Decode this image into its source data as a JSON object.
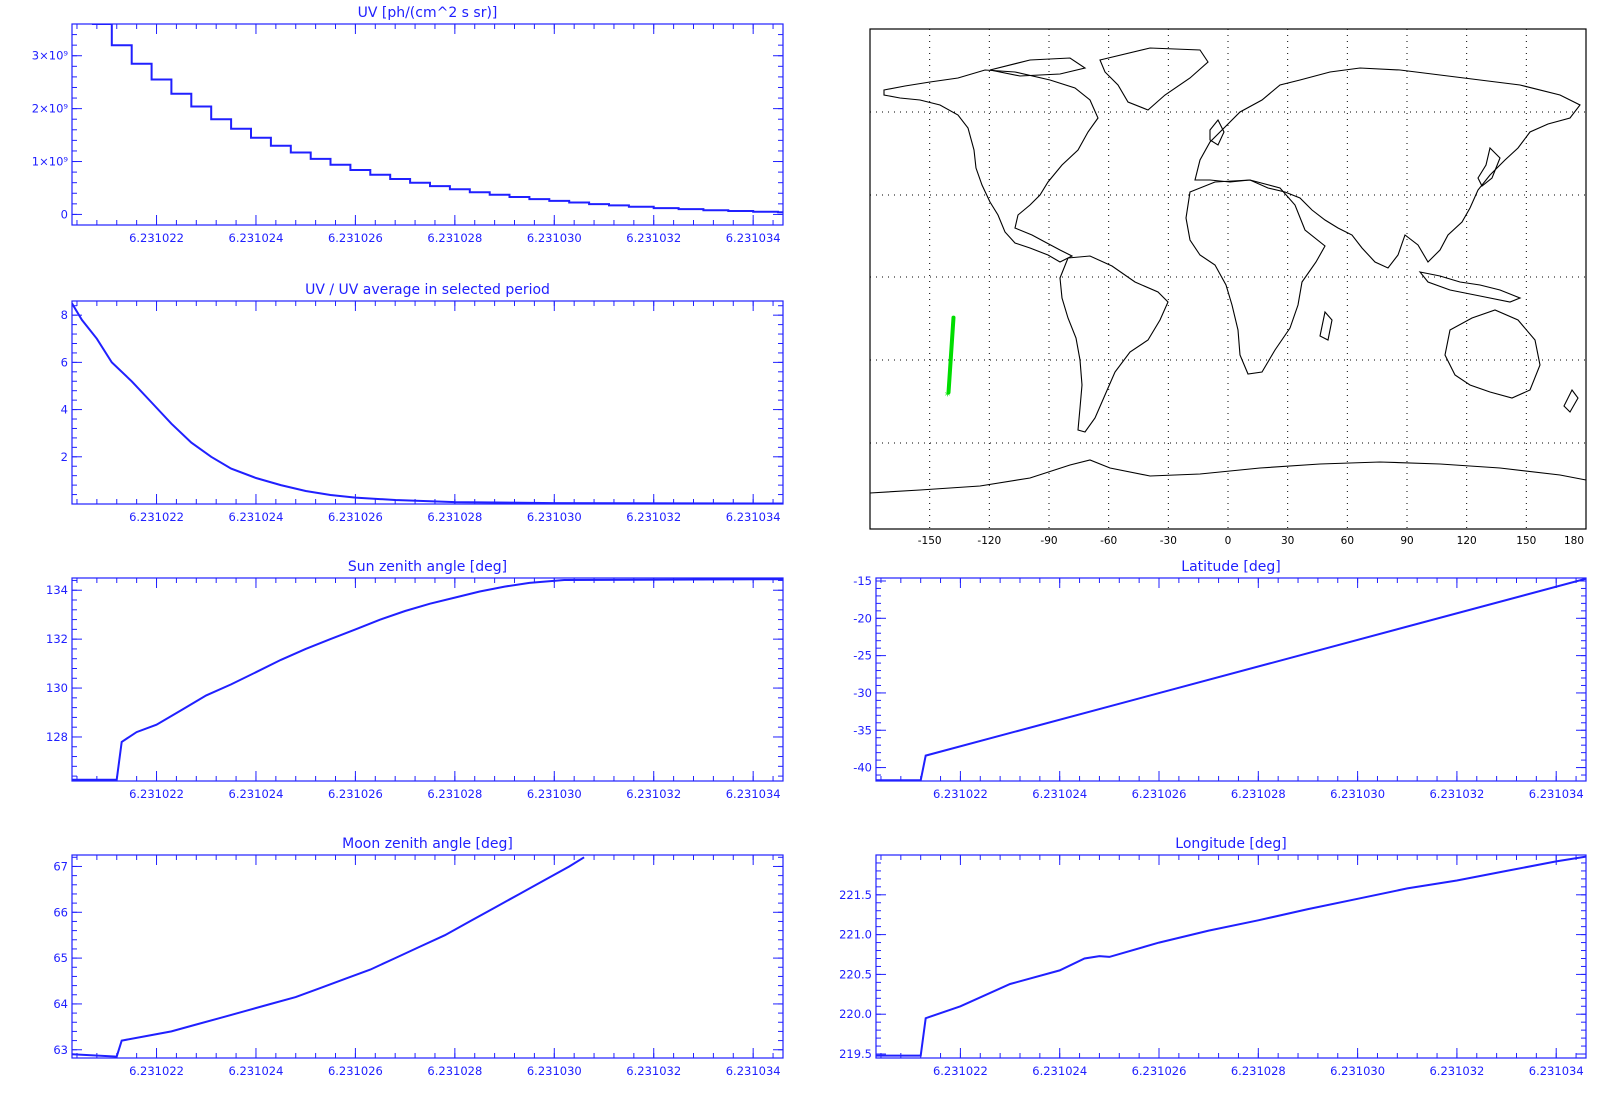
{
  "chart_data": [
    {
      "id": "uv",
      "type": "line",
      "title": "UV [ph/(cm^2 s sr)]",
      "step": true,
      "xlim": [
        6.2310203,
        6.2310346
      ],
      "ylim": [
        -200000000,
        3600000000
      ],
      "xticks": [
        6.231022,
        6.231024,
        6.231026,
        6.231028,
        6.23103,
        6.231032,
        6.231034
      ],
      "xtick_labels": [
        "6.231022",
        "6.231024",
        "6.231026",
        "6.231028",
        "6.231030",
        "6.231032",
        "6.231034"
      ],
      "yticks": [
        0,
        1000000000,
        2000000000,
        3000000000
      ],
      "ytick_labels": [
        "0",
        "1×10⁹",
        "2×10⁹",
        "3×10⁹"
      ],
      "series": [
        {
          "values": [
            [
              6.2310207,
              3600000000
            ],
            [
              6.2310211,
              3200000000
            ],
            [
              6.2310215,
              2850000000
            ],
            [
              6.2310219,
              2550000000
            ],
            [
              6.2310223,
              2280000000
            ],
            [
              6.2310227,
              2040000000
            ],
            [
              6.2310231,
              1800000000
            ],
            [
              6.2310235,
              1620000000
            ],
            [
              6.2310239,
              1450000000
            ],
            [
              6.2310243,
              1300000000
            ],
            [
              6.2310247,
              1170000000
            ],
            [
              6.2310251,
              1050000000
            ],
            [
              6.2310255,
              940000000
            ],
            [
              6.2310259,
              840000000
            ],
            [
              6.2310263,
              750000000
            ],
            [
              6.2310267,
              670000000
            ],
            [
              6.2310271,
              600000000
            ],
            [
              6.2310275,
              535000000
            ],
            [
              6.2310279,
              475000000
            ],
            [
              6.2310283,
              420000000
            ],
            [
              6.2310287,
              370000000
            ],
            [
              6.2310291,
              330000000
            ],
            [
              6.2310295,
              290000000
            ],
            [
              6.2310299,
              255000000
            ],
            [
              6.2310303,
              225000000
            ],
            [
              6.2310307,
              195000000
            ],
            [
              6.2310311,
              170000000
            ],
            [
              6.2310315,
              145000000
            ],
            [
              6.231032,
              120000000
            ],
            [
              6.2310325,
              100000000
            ],
            [
              6.231033,
              80000000
            ],
            [
              6.2310335,
              65000000
            ],
            [
              6.231034,
              50000000
            ],
            [
              6.2310345,
              40000000
            ]
          ]
        }
      ]
    },
    {
      "id": "uvratio",
      "type": "line",
      "title": "UV / UV average in selected period",
      "xlim": [
        6.2310203,
        6.2310346
      ],
      "ylim": [
        0,
        8.6
      ],
      "xticks": [
        6.231022,
        6.231024,
        6.231026,
        6.231028,
        6.23103,
        6.231032,
        6.231034
      ],
      "xtick_labels": [
        "6.231022",
        "6.231024",
        "6.231026",
        "6.231028",
        "6.231030",
        "6.231032",
        "6.231034"
      ],
      "yticks": [
        2,
        4,
        6,
        8
      ],
      "ytick_labels": [
        "2",
        "4",
        "6",
        "8"
      ],
      "series": [
        {
          "values": [
            [
              6.2310203,
              8.5
            ],
            [
              6.2310205,
              7.8
            ],
            [
              6.2310208,
              7.0
            ],
            [
              6.2310211,
              6.0
            ],
            [
              6.2310215,
              5.2
            ],
            [
              6.2310219,
              4.3
            ],
            [
              6.2310223,
              3.4
            ],
            [
              6.2310227,
              2.6
            ],
            [
              6.2310231,
              2.0
            ],
            [
              6.2310235,
              1.5
            ],
            [
              6.231024,
              1.1
            ],
            [
              6.2310245,
              0.8
            ],
            [
              6.231025,
              0.55
            ],
            [
              6.2310255,
              0.38
            ],
            [
              6.231026,
              0.27
            ],
            [
              6.2310268,
              0.17
            ],
            [
              6.231028,
              0.08
            ],
            [
              6.23103,
              0.04
            ],
            [
              6.2310346,
              0.02
            ]
          ]
        }
      ]
    },
    {
      "id": "sza",
      "type": "line",
      "title": "Sun zenith angle [deg]",
      "xlim": [
        6.2310203,
        6.2310346
      ],
      "ylim": [
        126.2,
        134.5
      ],
      "xticks": [
        6.231022,
        6.231024,
        6.231026,
        6.231028,
        6.23103,
        6.231032,
        6.231034
      ],
      "xtick_labels": [
        "6.231022",
        "6.231024",
        "6.231026",
        "6.231028",
        "6.231030",
        "6.231032",
        "6.231034"
      ],
      "yticks": [
        128,
        130,
        132,
        134
      ],
      "ytick_labels": [
        "128",
        "130",
        "132",
        "134"
      ],
      "series": [
        {
          "values": [
            [
              6.2310203,
              126.25
            ],
            [
              6.2310212,
              126.25
            ],
            [
              6.2310213,
              127.8
            ],
            [
              6.2310216,
              128.2
            ],
            [
              6.231022,
              128.5
            ],
            [
              6.2310225,
              129.1
            ],
            [
              6.231023,
              129.7
            ],
            [
              6.2310235,
              130.15
            ],
            [
              6.231024,
              130.65
            ],
            [
              6.2310245,
              131.15
            ],
            [
              6.231025,
              131.6
            ],
            [
              6.2310255,
              132.0
            ],
            [
              6.231026,
              132.4
            ],
            [
              6.2310265,
              132.8
            ],
            [
              6.231027,
              133.15
            ],
            [
              6.2310275,
              133.45
            ],
            [
              6.231028,
              133.7
            ],
            [
              6.2310285,
              133.95
            ],
            [
              6.231029,
              134.15
            ],
            [
              6.2310295,
              134.3
            ],
            [
              6.2310302,
              134.42
            ],
            [
              6.2310346,
              134.45
            ]
          ]
        }
      ]
    },
    {
      "id": "lat",
      "type": "line",
      "title": "Latitude [deg]",
      "xlim": [
        6.2310203,
        6.2310346
      ],
      "ylim": [
        -41.8,
        -14.6
      ],
      "xticks": [
        6.231022,
        6.231024,
        6.231026,
        6.231028,
        6.23103,
        6.231032,
        6.231034
      ],
      "xtick_labels": [
        "6.231022",
        "6.231024",
        "6.231026",
        "6.231028",
        "6.231030",
        "6.231032",
        "6.231034"
      ],
      "yticks": [
        -40,
        -35,
        -30,
        -25,
        -20,
        -15
      ],
      "ytick_labels": [
        "-40",
        "-35",
        "-30",
        "-25",
        "-20",
        "-15"
      ],
      "series": [
        {
          "values": [
            [
              6.2310203,
              -41.7
            ],
            [
              6.2310212,
              -41.7
            ],
            [
              6.2310213,
              -38.4
            ],
            [
              6.2310346,
              -14.7
            ]
          ]
        }
      ]
    },
    {
      "id": "mza",
      "type": "line",
      "title": "Moon zenith angle [deg]",
      "xlim": [
        6.2310203,
        6.2310346
      ],
      "ylim": [
        62.82,
        67.25
      ],
      "xticks": [
        6.231022,
        6.231024,
        6.231026,
        6.231028,
        6.23103,
        6.231032,
        6.231034
      ],
      "xtick_labels": [
        "6.231022",
        "6.231024",
        "6.231026",
        "6.231028",
        "6.231030",
        "6.231032",
        "6.231034"
      ],
      "yticks": [
        63,
        64,
        65,
        66,
        67
      ],
      "ytick_labels": [
        "63",
        "64",
        "65",
        "66",
        "67"
      ],
      "series": [
        {
          "values": [
            [
              6.2310203,
              62.9
            ],
            [
              6.2310212,
              62.85
            ],
            [
              6.2310213,
              63.2
            ],
            [
              6.2310218,
              63.3
            ],
            [
              6.2310223,
              63.4
            ],
            [
              6.2310228,
              63.55
            ],
            [
              6.2310233,
              63.7
            ],
            [
              6.2310238,
              63.85
            ],
            [
              6.2310243,
              64.0
            ],
            [
              6.2310248,
              64.15
            ],
            [
              6.2310253,
              64.35
            ],
            [
              6.2310258,
              64.55
            ],
            [
              6.2310263,
              64.75
            ],
            [
              6.2310268,
              65.0
            ],
            [
              6.2310273,
              65.25
            ],
            [
              6.2310278,
              65.5
            ],
            [
              6.2310283,
              65.8
            ],
            [
              6.2310288,
              66.1
            ],
            [
              6.2310293,
              66.4
            ],
            [
              6.2310298,
              66.7
            ],
            [
              6.2310303,
              67.0
            ],
            [
              6.2310306,
              67.2
            ]
          ]
        }
      ]
    },
    {
      "id": "lon",
      "type": "line",
      "title": "Longitude [deg]",
      "xlim": [
        6.2310203,
        6.2310346
      ],
      "ylim": [
        219.45,
        222.0
      ],
      "xticks": [
        6.231022,
        6.231024,
        6.231026,
        6.231028,
        6.23103,
        6.231032,
        6.231034
      ],
      "xtick_labels": [
        "6.231022",
        "6.231024",
        "6.231026",
        "6.231028",
        "6.231030",
        "6.231032",
        "6.231034"
      ],
      "yticks": [
        219.5,
        220.0,
        220.5,
        221.0,
        221.5
      ],
      "ytick_labels": [
        "219.5",
        "220.0",
        "220.5",
        "221.0",
        "221.5"
      ],
      "series": [
        {
          "values": [
            [
              6.2310203,
              219.48
            ],
            [
              6.2310212,
              219.48
            ],
            [
              6.2310213,
              219.95
            ],
            [
              6.231022,
              220.1
            ],
            [
              6.231023,
              220.38
            ],
            [
              6.231024,
              220.55
            ],
            [
              6.2310245,
              220.7
            ],
            [
              6.2310248,
              220.73
            ],
            [
              6.231025,
              220.72
            ],
            [
              6.231026,
              220.9
            ],
            [
              6.231027,
              221.05
            ],
            [
              6.231028,
              221.18
            ],
            [
              6.231029,
              221.32
            ],
            [
              6.23103,
              221.45
            ],
            [
              6.231031,
              221.58
            ],
            [
              6.231032,
              221.68
            ],
            [
              6.231033,
              221.8
            ],
            [
              6.231034,
              221.92
            ],
            [
              6.2310346,
              221.98
            ]
          ]
        }
      ]
    }
  ],
  "map": {
    "xtick_labels": [
      "-150",
      "-120",
      "-90",
      "-60",
      "-30",
      "0",
      "30",
      "60",
      "90",
      "120",
      "150",
      "180"
    ],
    "track_color": "#00dd00",
    "line_color": "#2020ff"
  }
}
